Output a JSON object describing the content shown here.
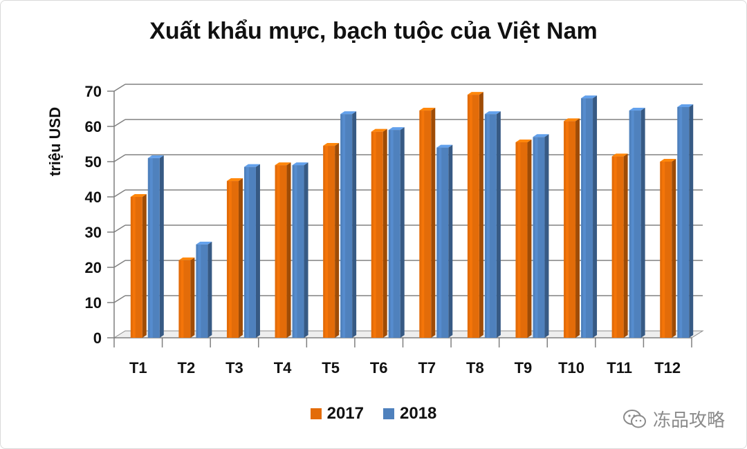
{
  "chart_data": {
    "type": "bar",
    "title": "Xuất khẩu mực, bạch tuộc của Việt Nam",
    "ylabel": "triệu USD",
    "xlabel": "",
    "categories": [
      "T1",
      "T2",
      "T3",
      "T4",
      "T5",
      "T6",
      "T7",
      "T8",
      "T9",
      "T10",
      "T11",
      "T12"
    ],
    "series": [
      {
        "name": "2017",
        "color": "#e36c09",
        "values": [
          40,
          22,
          44.5,
          49,
          54.5,
          58.5,
          64.5,
          69,
          55.5,
          61.5,
          51.5,
          50
        ]
      },
      {
        "name": "2018",
        "color": "#4f81bd",
        "values": [
          51,
          26.5,
          48.5,
          49,
          63.5,
          59,
          54,
          63.5,
          57,
          68,
          64.5,
          65.5
        ]
      }
    ],
    "ylim": [
      0,
      70
    ],
    "yticks": [
      0,
      10,
      20,
      30,
      40,
      50,
      60,
      70
    ],
    "grid": true,
    "legend_position": "bottom"
  },
  "watermark": {
    "text": "冻品攻略",
    "icon": "wechat-icon"
  }
}
